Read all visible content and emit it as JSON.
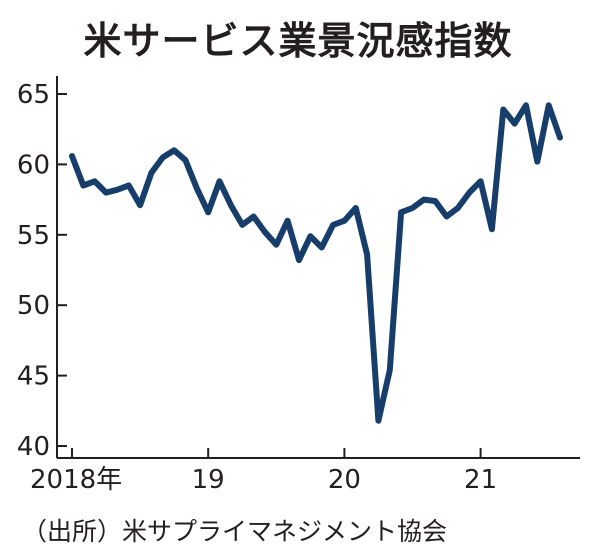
{
  "chart_data": {
    "type": "line",
    "title": "米サービス業景況感指数",
    "xlabel": "",
    "ylabel": "",
    "ylim": [
      40,
      66
    ],
    "yticks": [
      40,
      45,
      50,
      55,
      60,
      65
    ],
    "xticks": [
      {
        "label": "2018年",
        "index": 0
      },
      {
        "label": "19",
        "index": 12
      },
      {
        "label": "20",
        "index": 24
      },
      {
        "label": "21",
        "index": 36
      }
    ],
    "series": [
      {
        "name": "",
        "color": "#173e6b",
        "values": [
          60.6,
          58.5,
          58.8,
          58.0,
          58.2,
          58.5,
          57.1,
          59.4,
          60.5,
          61.0,
          60.3,
          58.3,
          56.6,
          58.8,
          57.1,
          55.7,
          56.3,
          55.2,
          54.3,
          56.0,
          53.2,
          54.9,
          54.1,
          55.7,
          56.0,
          56.9,
          53.6,
          41.8,
          45.4,
          56.6,
          56.9,
          57.5,
          57.4,
          56.3,
          56.9,
          58.0,
          58.8,
          55.4,
          63.9,
          62.9,
          64.2,
          60.2,
          64.2,
          61.9
        ]
      }
    ],
    "grid": false,
    "legend": "none"
  },
  "source": "（出所）米サプライマネジメント協会"
}
